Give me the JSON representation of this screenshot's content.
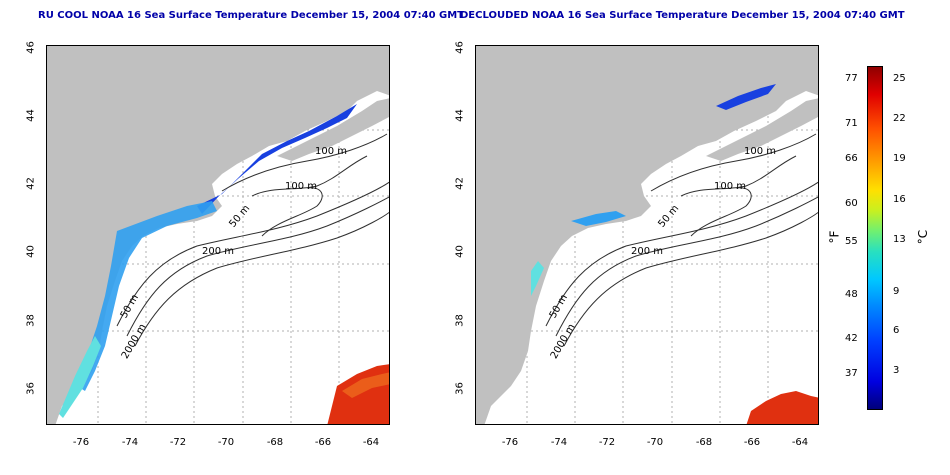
{
  "titles": {
    "left": "RU COOL NOAA 16 Sea Surface Temperature December 15, 2004 07:40 GMT",
    "right": "DECLOUDED NOAA 16 Sea Surface Temperature December 15, 2004 07:40 GMT"
  },
  "axes": {
    "lat_ticks": [
      "36",
      "38",
      "40",
      "42",
      "44",
      "46"
    ],
    "lon_ticks": [
      "-76",
      "-74",
      "-72",
      "-70",
      "-68",
      "-66",
      "-64"
    ]
  },
  "contour_labels": [
    "100 m",
    "100 m",
    "50 m",
    "200 m",
    "50 m",
    "2000 m"
  ],
  "colorbar": {
    "fahrenheit_ticks": [
      "77",
      "71",
      "66",
      "60",
      "55",
      "48",
      "42",
      "37"
    ],
    "celsius_ticks": [
      "25",
      "22",
      "19",
      "16",
      "13",
      "9",
      "6",
      "3"
    ],
    "unit_f": "°F",
    "unit_c": "°C"
  },
  "colors": {
    "land": "#c0c0c0",
    "title": "#0000a8",
    "cold": "#1030e0",
    "warm": "#e03010"
  }
}
